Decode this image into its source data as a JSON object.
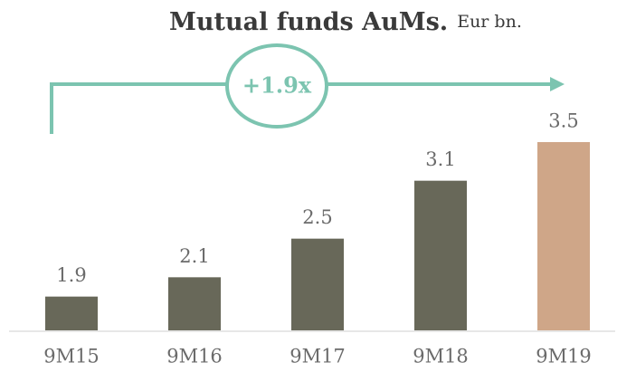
{
  "chart_data": {
    "type": "bar",
    "title": "Mutual funds AuMs.",
    "subtitle": "Eur bn.",
    "annotation": "+1.9x",
    "categories": [
      "9M15",
      "9M16",
      "9M17",
      "9M18",
      "9M19"
    ],
    "values": [
      1.9,
      2.1,
      2.5,
      3.1,
      3.5
    ],
    "colors": [
      "#686859",
      "#686859",
      "#686859",
      "#686859",
      "#cfa688"
    ],
    "ylim": [
      1.55,
      3.5
    ]
  }
}
